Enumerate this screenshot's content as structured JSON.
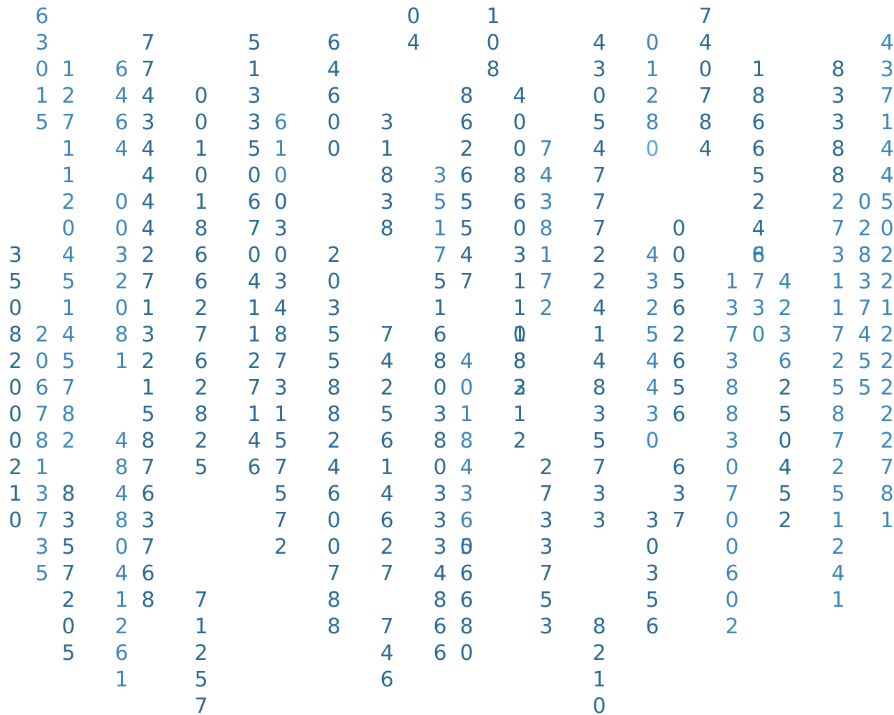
{
  "rain": {
    "colors": [
      "#2a6a95",
      "#3c86bb",
      "#5aaade"
    ],
    "columns": [
      {
        "start": 9,
        "text": "35082000210"
      },
      {
        "start": 0,
        "text": "63015",
        "shade": 1
      },
      {
        "start": 12,
        "text": "2067813735",
        "shade": 1
      },
      {
        "start": 2,
        "text": "127112045145782",
        "shade": 1
      },
      {
        "start": 18,
        "text": "8357205",
        "shade": 0
      },
      {
        "start": 2,
        "text": "6464",
        "shade": 1
      },
      {
        "start": 7,
        "text": "0032081",
        "shade": 1
      },
      {
        "start": 16,
        "text": "4848041261",
        "shade": 1
      },
      {
        "start": 1,
        "text": "7743444427132158763768",
        "shade": 0
      },
      {
        "start": 3,
        "text": "001018662762825",
        "shade": 0
      },
      {
        "start": 22,
        "text": "71257",
        "shade": 0
      },
      {
        "start": 1,
        "text": "51335067041127146",
        "shade": 0
      },
      {
        "start": 4,
        "text": "6100",
        "shade": 1
      },
      {
        "start": 7,
        "text": "03034873157572",
        "shade": 0
      },
      {
        "start": 1,
        "text": "64600",
        "shade": 0
      },
      {
        "start": 9,
        "text": "203558824600788",
        "shade": 0
      },
      {
        "start": 4,
        "text": "31838",
        "shade": 0
      },
      {
        "start": 12,
        "text": "7425614627",
        "shade": 0
      },
      {
        "start": 23,
        "text": "746",
        "shade": 0
      },
      {
        "start": 0,
        "text": "04",
        "shade": 0
      },
      {
        "start": 6,
        "text": "3517",
        "shade": 1
      },
      {
        "start": 10,
        "text": "516803803334866",
        "shade": 0
      },
      {
        "start": 3,
        "text": "86265547",
        "shade": 0
      },
      {
        "start": 13,
        "text": "40184365",
        "shade": 1
      },
      {
        "start": 20,
        "text": "06680",
        "shade": 0
      },
      {
        "start": 0,
        "text": "108",
        "shade": 0
      },
      {
        "start": 3,
        "text": "400860311182",
        "shade": 0
      },
      {
        "start": 12,
        "text": "08312",
        "shade": 0
      },
      {
        "start": 5,
        "text": "7438172",
        "shade": 1
      },
      {
        "start": 17,
        "text": "2733753",
        "shade": 0
      },
      {
        "start": 1,
        "text": "4305477722414835733",
        "shade": 0
      },
      {
        "start": 23,
        "text": "82100",
        "shade": 0
      },
      {
        "start": 1,
        "text": "0128",
        "shade": 1
      },
      {
        "start": 5,
        "text": "0",
        "shade": 2
      },
      {
        "start": 9,
        "text": "43254430",
        "shade": 1
      },
      {
        "start": 19,
        "text": "30356",
        "shade": 0
      },
      {
        "start": 8,
        "text": "00562656",
        "shade": 0
      },
      {
        "start": 17,
        "text": "637",
        "shade": 0
      },
      {
        "start": 0,
        "text": "740784",
        "shade": 0
      },
      {
        "start": 10,
        "text": "13738830700602",
        "shade": 1
      },
      {
        "start": 2,
        "text": "18665246",
        "shade": 0
      },
      {
        "start": 9,
        "text": "8730",
        "shade": 1
      },
      {
        "start": 10,
        "text": "4236",
        "shade": 1
      },
      {
        "start": 14,
        "text": "250452",
        "shade": 0
      },
      {
        "start": 2,
        "text": "83388",
        "shade": 0
      },
      {
        "start": 7,
        "text": "2731172587251241",
        "shade": 1
      },
      {
        "start": 7,
        "text": "0",
        "shade": 1
      },
      {
        "start": 8,
        "text": "2",
        "shade": 1
      },
      {
        "start": 9,
        "text": "8",
        "shade": 1
      },
      {
        "start": 10,
        "text": "3",
        "shade": 1
      },
      {
        "start": 11,
        "text": "7",
        "shade": 1
      },
      {
        "start": 12,
        "text": "4",
        "shade": 1
      },
      {
        "start": 13,
        "text": "5",
        "shade": 1
      },
      {
        "start": 14,
        "text": "5",
        "shade": 1
      },
      {
        "start": 1,
        "text": "4371445022122222781",
        "shade": 1
      }
    ]
  }
}
